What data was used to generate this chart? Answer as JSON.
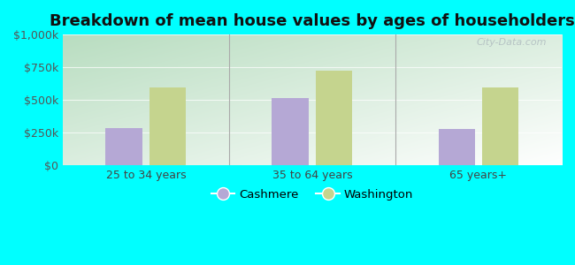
{
  "title": "Breakdown of mean house values by ages of householders",
  "categories": [
    "25 to 34 years",
    "35 to 64 years",
    "65 years+"
  ],
  "cashmere_values": [
    285000,
    515000,
    275000
  ],
  "washington_values": [
    590000,
    720000,
    590000
  ],
  "ylim": [
    0,
    1000000
  ],
  "yticks": [
    0,
    250000,
    500000,
    750000,
    1000000
  ],
  "ytick_labels": [
    "$0",
    "$250k",
    "$500k",
    "$750k",
    "$1,000k"
  ],
  "cashmere_color": "#b5a8d5",
  "washington_color": "#c5d48e",
  "background_color": "#00FFFF",
  "gradient_top_left": "#b8ddc0",
  "gradient_right": "#eef5ee",
  "bar_width": 0.22,
  "legend_labels": [
    "Cashmere",
    "Washington"
  ],
  "watermark": "City-Data.com",
  "title_fontsize": 13,
  "tick_fontsize": 9
}
